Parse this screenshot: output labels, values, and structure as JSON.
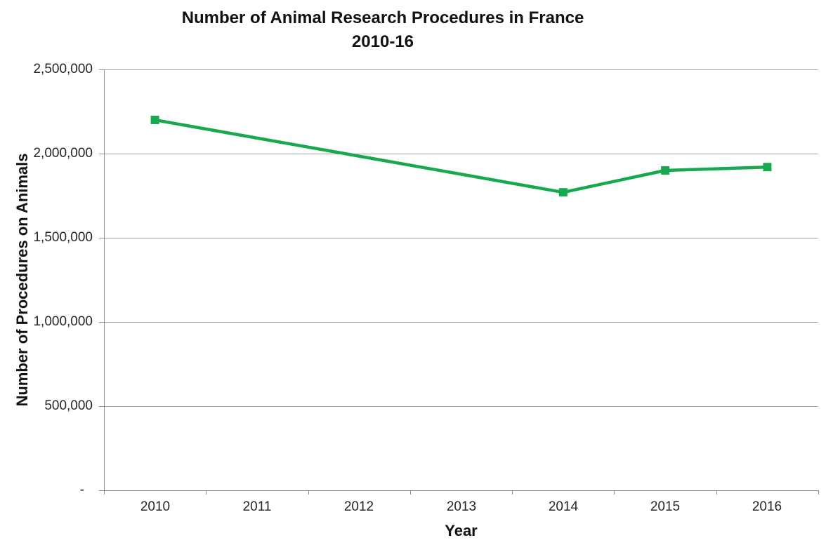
{
  "title": {
    "line1": "Number of Animal Research Procedures in France",
    "line2": "2010-16"
  },
  "chart_data": {
    "type": "line",
    "title": "Number of Animal Research Procedures in France 2010-16",
    "xlabel": "Year",
    "ylabel": "Number of Procedures on Animals",
    "categories": [
      "2010",
      "2011",
      "2012",
      "2013",
      "2014",
      "2015",
      "2016"
    ],
    "series": [
      {
        "name": "",
        "marker": "square",
        "values": [
          2200000,
          null,
          null,
          null,
          1770000,
          1900000,
          1920000
        ]
      }
    ],
    "ylim": [
      0,
      2500000
    ],
    "ytick_interval": 500000,
    "ytick_labels": [
      "-",
      "500,000",
      "1,000,000",
      "1,500,000",
      "2,000,000",
      "2,500,000"
    ],
    "grid": "horizontal",
    "legend": "none"
  },
  "colors": {
    "line": "#17A94F",
    "gridline": "#A6A6A6",
    "axis": "#8C8C8C",
    "text": "#262626",
    "background": "#FFFFFF"
  }
}
